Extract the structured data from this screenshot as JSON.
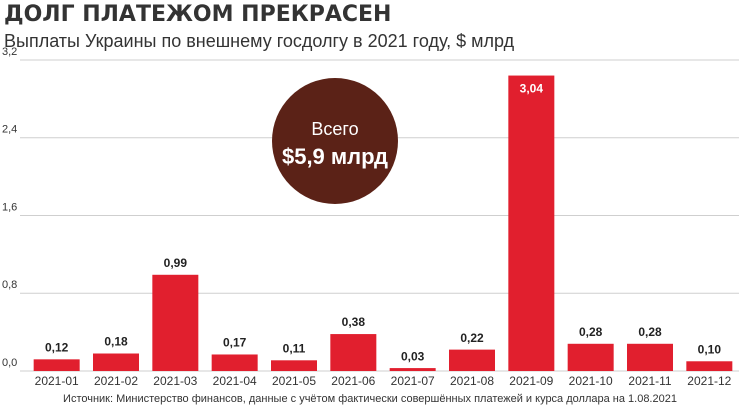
{
  "chart_data": {
    "type": "bar",
    "title": "ДОЛГ ПЛАТЕЖОМ ПРЕКРАСЕН",
    "subtitle": "Выплаты Украины по внешнему госдолгу в 2021 году, $ млрд",
    "categories": [
      "2021-01",
      "2021-02",
      "2021-03",
      "2021-04",
      "2021-05",
      "2021-06",
      "2021-07",
      "2021-08",
      "2021-09",
      "2021-10",
      "2021-11",
      "2021-12"
    ],
    "values": [
      0.12,
      0.18,
      0.99,
      0.17,
      0.11,
      0.38,
      0.03,
      0.22,
      3.04,
      0.28,
      0.28,
      0.1
    ],
    "value_labels": [
      "0,12",
      "0,18",
      "0,99",
      "0,17",
      "0,11",
      "0,38",
      "0,03",
      "0,22",
      "3,04",
      "0,28",
      "0,28",
      "0,10"
    ],
    "color": "#e11f2e",
    "ylim": [
      0,
      3.2
    ],
    "yticks": [
      {
        "value": 0,
        "label": "0,0"
      },
      {
        "value": 0.8,
        "label": "0,8"
      },
      {
        "value": 1.6,
        "label": "1,6"
      },
      {
        "value": 2.4,
        "label": "2,4"
      },
      {
        "value": 3.2,
        "label": "3,2"
      }
    ],
    "grid": true,
    "annotation": {
      "line1": "Всего",
      "line2": "$5,9 млрд"
    },
    "source": "Источник: Министерство финансов, данные с учётом фактически совершённых платежей и курса доллара на 1.08.2021"
  }
}
